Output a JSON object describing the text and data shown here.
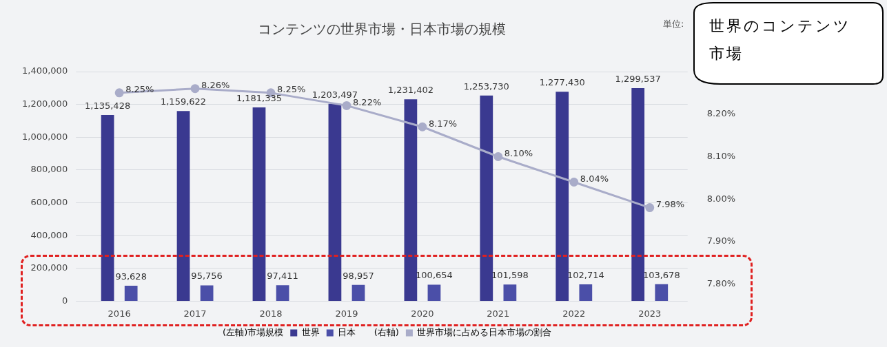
{
  "chart_data": {
    "type": "bar",
    "title": "コンテンツの世界市場・日本市場の規模",
    "categories": [
      "2016",
      "2017",
      "2018",
      "2019",
      "2020",
      "2021",
      "2022",
      "2023"
    ],
    "series": [
      {
        "name": "世界",
        "color": "#3a3990",
        "values": [
          1135428,
          1159622,
          1181335,
          1203497,
          1231402,
          1253730,
          1277430,
          1299537
        ],
        "value_labels": [
          "1,135,428",
          "1,159,622",
          "1,181,335",
          "1,203,497",
          "1,231,402",
          "1,253,730",
          "1,277,430",
          "1,299,537"
        ]
      },
      {
        "name": "日本",
        "color": "#4b4fa8",
        "values": [
          93628,
          95756,
          97411,
          98957,
          100654,
          101598,
          102714,
          103678
        ],
        "value_labels": [
          "93,628",
          "95,756",
          "97,411",
          "98,957",
          "100,654",
          "101,598",
          "102,714",
          "103,678"
        ]
      },
      {
        "name": "世界市場に占める日本市場の割合",
        "type": "line",
        "axis": "y2",
        "color": "#a9acc9",
        "values": [
          8.25,
          8.26,
          8.25,
          8.22,
          8.17,
          8.1,
          8.04,
          7.98
        ],
        "value_labels": [
          "8.25%",
          "8.26%",
          "8.25%",
          "8.22%",
          "8.17%",
          "8.10%",
          "8.04%",
          "7.98%"
        ]
      }
    ],
    "ylim": [
      0,
      1400000
    ],
    "yticks": [
      {
        "value": 0,
        "label": "0"
      },
      {
        "value": 200000,
        "label": "200,000"
      },
      {
        "value": 400000,
        "label": "400,000"
      },
      {
        "value": 600000,
        "label": "600,000"
      },
      {
        "value": 800000,
        "label": "800,000"
      },
      {
        "value": 1000000,
        "label": "1,000,000"
      },
      {
        "value": 1200000,
        "label": "1,200,000"
      },
      {
        "value": 1400000,
        "label": "1,400,000"
      }
    ],
    "y2lim": [
      7.76,
      8.3
    ],
    "y2ticks": [
      {
        "value": 7.8,
        "label": "7.80%"
      },
      {
        "value": 7.9,
        "label": "7.90%"
      },
      {
        "value": 8,
        "label": "8.00%"
      },
      {
        "value": 8.1,
        "label": "8.10%"
      },
      {
        "value": 8.2,
        "label": "8.20%"
      }
    ],
    "grid": "y",
    "legend": "bottom",
    "marker": "circle",
    "annotations": [
      "単位:",
      "(左軸)市場規模",
      "(右軸)",
      "世界のコンテンツ市場"
    ]
  }
}
